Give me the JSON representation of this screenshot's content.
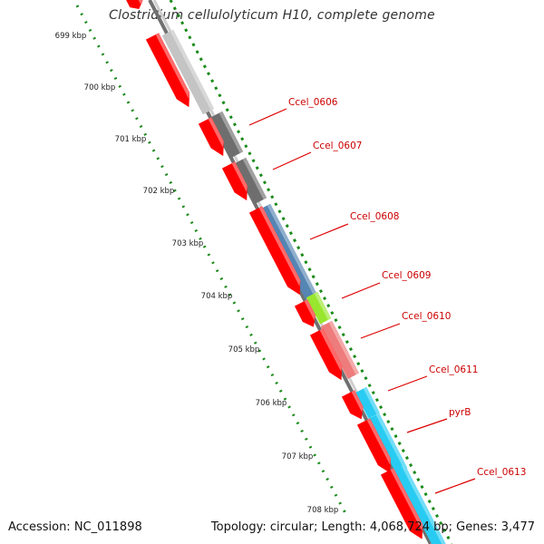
{
  "title": "Clostridium cellulolyticum H10, complete genome",
  "accession": "Accession: NC_011898",
  "topology": "Topology: circular; Length: 4,068,724 bp; Genes: 3,477",
  "colors": {
    "backbone_dark": "#666666",
    "backbone_light": "#c8c8c8",
    "gene_arrow": "#ff0000",
    "tick_dots": "#1a8a1a",
    "label_line": "#dd0000",
    "label_text": "#cc0000"
  },
  "kbp_labels": [
    "699 kbp",
    "700 kbp",
    "701 kbp",
    "702 kbp",
    "703 kbp",
    "704 kbp",
    "705 kbp",
    "706 kbp",
    "707 kbp",
    "708 kbp"
  ],
  "gene_labels": [
    "Ccel_0606",
    "Ccel_0607",
    "Ccel_0608",
    "Ccel_0609",
    "Ccel_0610",
    "Ccel_0611",
    "pyrB",
    "Ccel_0613"
  ],
  "cog_colors": [
    "#c4c4c4",
    "#6e6e6e",
    "#6e6e6e",
    "#5485b3",
    "#99e62e",
    "#ee7c7c",
    "#28ccf2",
    "#28ccf2",
    "#28ccf2"
  ]
}
